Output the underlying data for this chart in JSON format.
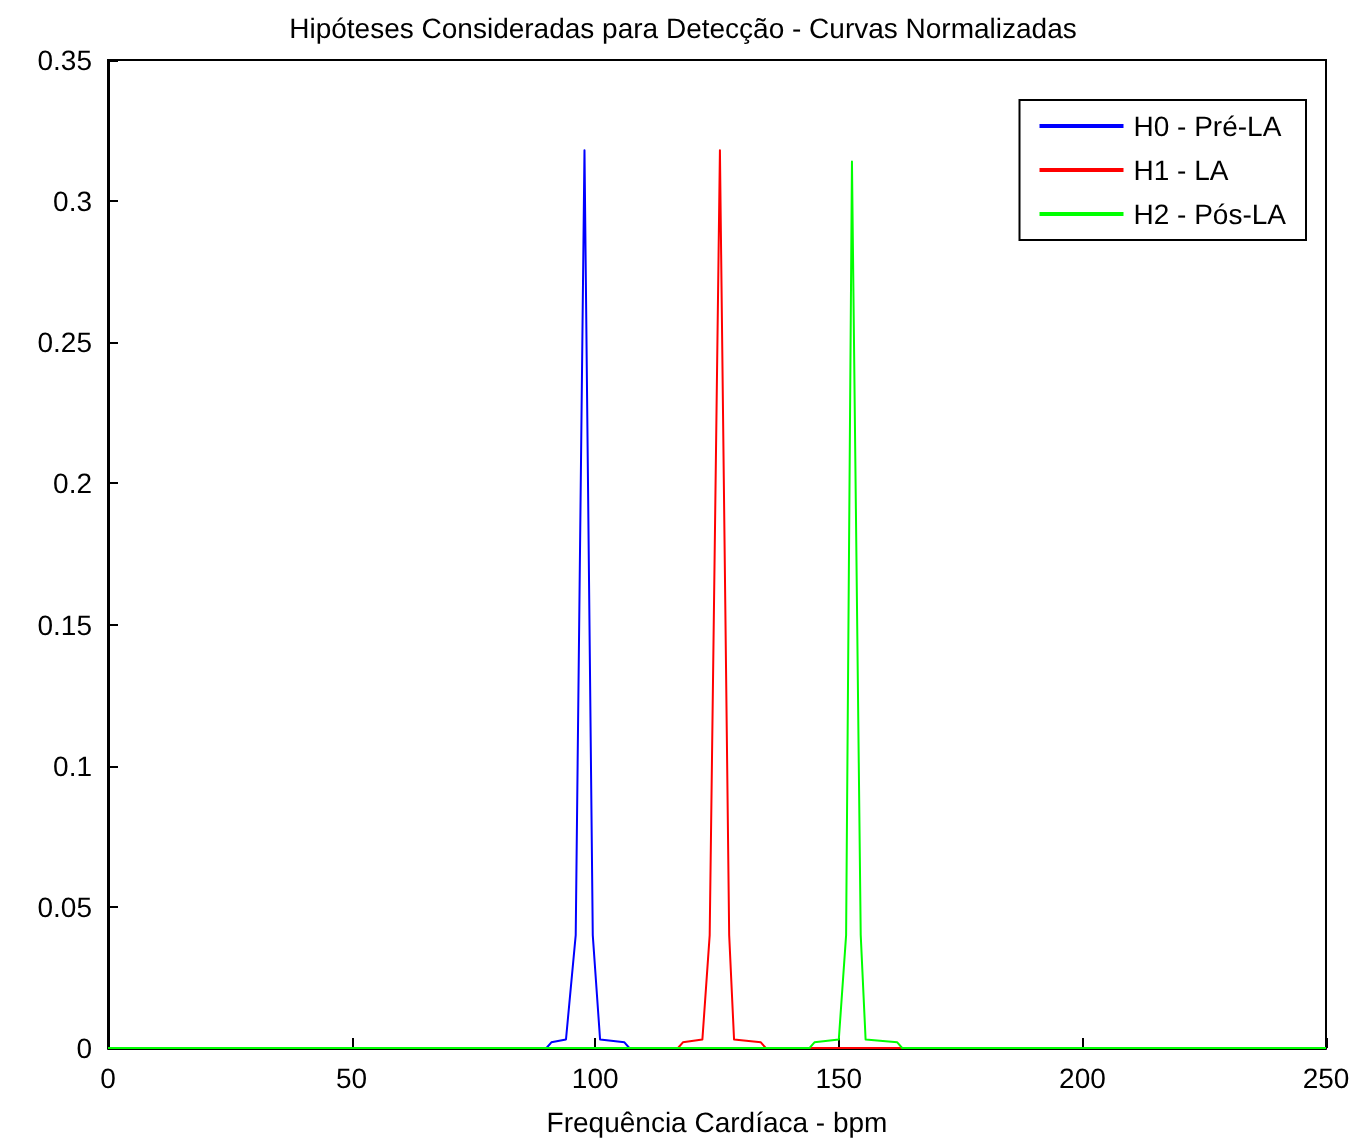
{
  "chart_data": {
    "type": "line",
    "title": "Hipóteses Consideradas para Detecção - Curvas Normalizadas",
    "xlabel": "Frequência Cardíaca - bpm",
    "xlim": [
      0,
      250
    ],
    "xticks": [
      0,
      50,
      100,
      150,
      200,
      250
    ],
    "ylim": [
      0,
      0.35
    ],
    "yticks": [
      0,
      0.05,
      0.1,
      0.15,
      0.2,
      0.25,
      0.3,
      0.35
    ],
    "grid": false,
    "legend": "top right",
    "marker": "none",
    "series": [
      {
        "name": "H0 - Pré-LA",
        "color": "#0000ff",
        "x": [
          0,
          90,
          91,
          94,
          96,
          97.8,
          99.5,
          101,
          106,
          107,
          250
        ],
        "values": [
          0,
          0,
          0.002,
          0.003,
          0.04,
          0.318,
          0.04,
          0.003,
          0.002,
          0,
          0
        ]
      },
      {
        "name": "H1 - LA",
        "color": "#ff0000",
        "x": [
          0,
          117,
          118,
          122,
          123.5,
          125.6,
          127.5,
          128.5,
          134,
          135,
          250
        ],
        "values": [
          0,
          0,
          0.002,
          0.003,
          0.04,
          0.318,
          0.04,
          0.003,
          0.002,
          0,
          0
        ]
      },
      {
        "name": "H2 - Pós-LA",
        "color": "#00ff00",
        "x": [
          0,
          144,
          145,
          150,
          151.5,
          152.7,
          154.5,
          155.5,
          162,
          163,
          250
        ],
        "values": [
          0,
          0,
          0.002,
          0.003,
          0.04,
          0.314,
          0.04,
          0.003,
          0.002,
          0,
          0
        ]
      }
    ]
  }
}
